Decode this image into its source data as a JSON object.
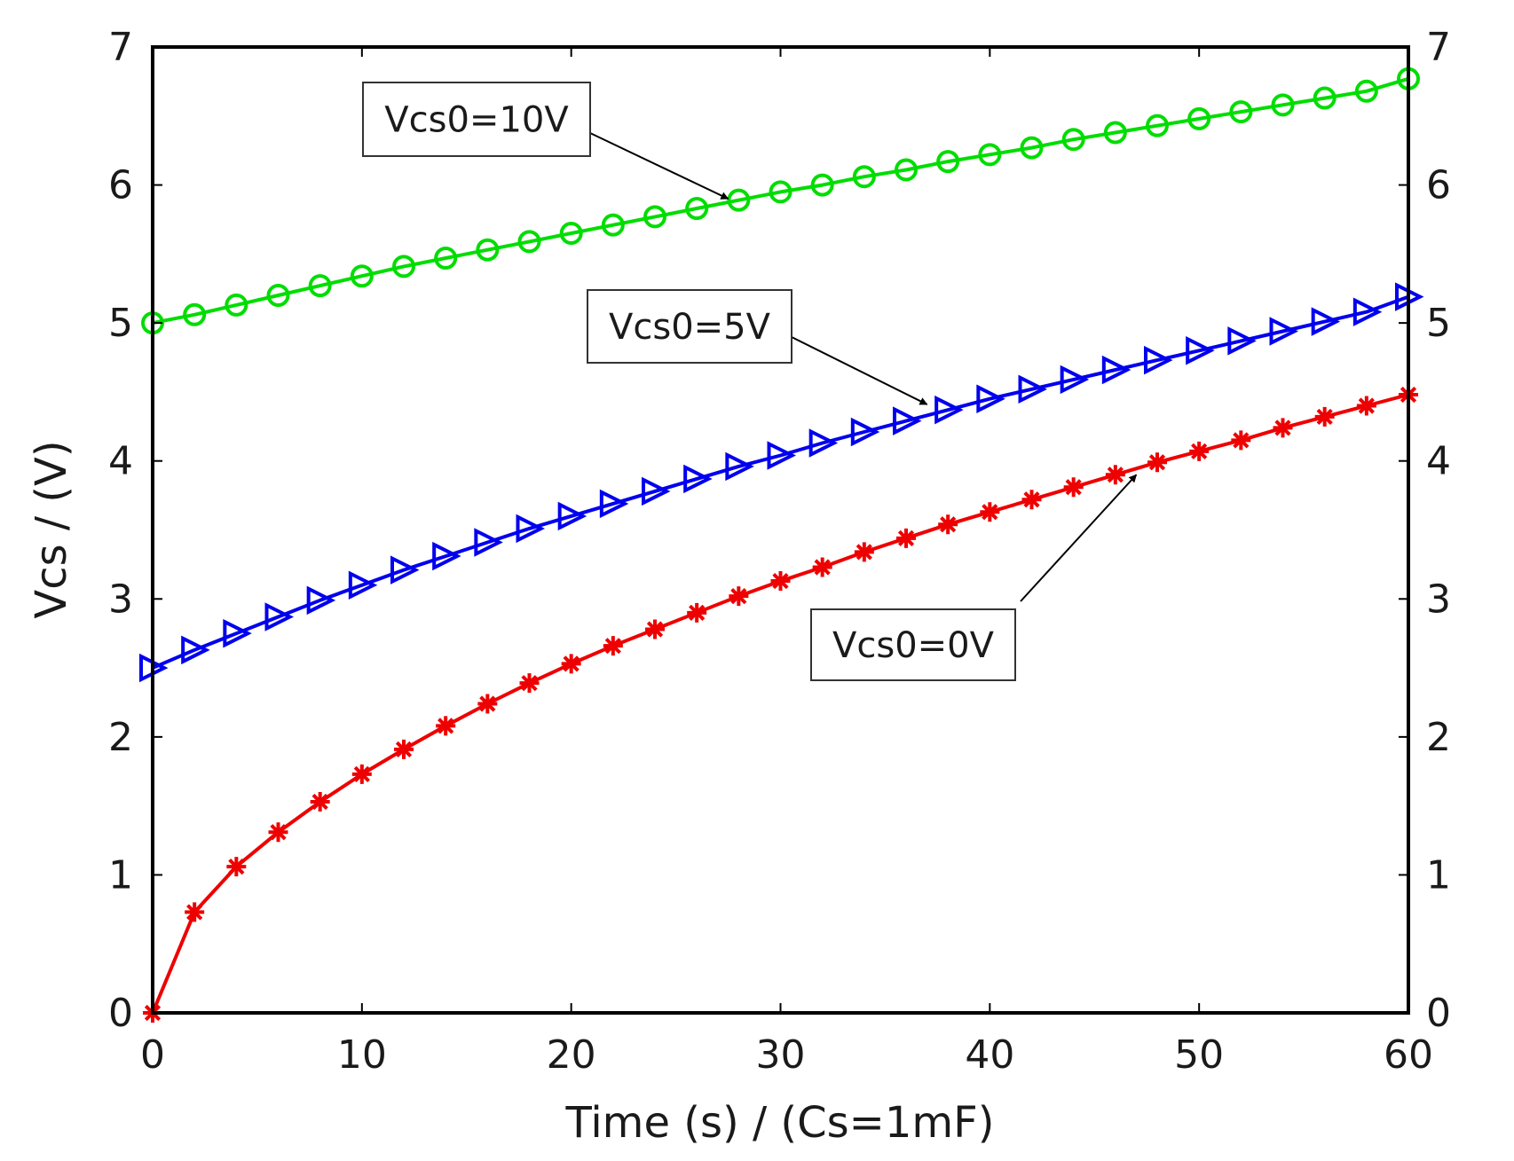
{
  "chart_data": {
    "type": "line",
    "title": "",
    "xlabel": "Time (s) / (Cs=1mF)",
    "ylabel": "Vcs / (V)",
    "xlim": [
      0,
      60
    ],
    "ylim": [
      0,
      7
    ],
    "xticks": [
      0,
      10,
      20,
      30,
      40,
      50,
      60
    ],
    "yticks": [
      0,
      1,
      2,
      3,
      4,
      5,
      6,
      7
    ],
    "x_tick_labels": [
      "0",
      "10",
      "20",
      "30",
      "40",
      "50",
      "60"
    ],
    "y_tick_labels": [
      "0",
      "1",
      "2",
      "3",
      "4",
      "5",
      "6",
      "7"
    ],
    "y_tick_labels_right": [
      "0",
      "1",
      "2",
      "3",
      "4",
      "5",
      "6",
      "7"
    ],
    "grid": false,
    "series": [
      {
        "name": "Vcs0=10V",
        "color": "#00dd00",
        "marker": "circle",
        "x": [
          0,
          2,
          4,
          6,
          8,
          10,
          12,
          14,
          16,
          18,
          20,
          22,
          24,
          26,
          28,
          30,
          32,
          34,
          36,
          38,
          40,
          42,
          44,
          46,
          48,
          50,
          52,
          54,
          56,
          58,
          60
        ],
        "values": [
          5.0,
          5.06,
          5.13,
          5.2,
          5.27,
          5.34,
          5.41,
          5.47,
          5.53,
          5.59,
          5.65,
          5.71,
          5.77,
          5.83,
          5.89,
          5.95,
          6.0,
          6.06,
          6.11,
          6.17,
          6.22,
          6.27,
          6.33,
          6.38,
          6.43,
          6.48,
          6.53,
          6.58,
          6.63,
          6.68,
          6.77
        ]
      },
      {
        "name": "Vcs0=5V",
        "color": "#0000ee",
        "marker": "triangle-right",
        "x": [
          0,
          2,
          4,
          6,
          8,
          10,
          12,
          14,
          16,
          18,
          20,
          22,
          24,
          26,
          28,
          30,
          32,
          34,
          36,
          38,
          40,
          42,
          44,
          46,
          48,
          50,
          52,
          54,
          56,
          58,
          60
        ],
        "values": [
          2.5,
          2.63,
          2.75,
          2.87,
          2.99,
          3.1,
          3.21,
          3.31,
          3.41,
          3.51,
          3.6,
          3.69,
          3.78,
          3.87,
          3.96,
          4.04,
          4.13,
          4.21,
          4.29,
          4.37,
          4.45,
          4.52,
          4.59,
          4.66,
          4.73,
          4.8,
          4.87,
          4.94,
          5.01,
          5.08,
          5.19
        ]
      },
      {
        "name": "Vcs0=0V",
        "color": "#ee0000",
        "marker": "asterisk",
        "x": [
          0,
          2,
          4,
          6,
          8,
          10,
          12,
          14,
          16,
          18,
          20,
          22,
          24,
          26,
          28,
          30,
          32,
          34,
          36,
          38,
          40,
          42,
          44,
          46,
          48,
          50,
          52,
          54,
          56,
          58,
          60
        ],
        "values": [
          0.0,
          0.73,
          1.06,
          1.31,
          1.53,
          1.73,
          1.91,
          2.08,
          2.24,
          2.39,
          2.53,
          2.66,
          2.78,
          2.9,
          3.02,
          3.13,
          3.23,
          3.34,
          3.44,
          3.54,
          3.63,
          3.72,
          3.81,
          3.9,
          3.99,
          4.07,
          4.15,
          4.24,
          4.32,
          4.4,
          4.48
        ]
      }
    ],
    "annotations": [
      {
        "text": "Vcs0=10V",
        "series": "Vcs0=10V",
        "target": [
          27.5,
          5.9
        ]
      },
      {
        "text": "Vcs0=5V",
        "series": "Vcs0=5V",
        "target": [
          37.0,
          4.41
        ]
      },
      {
        "text": "Vcs0=0V",
        "series": "Vcs0=0V",
        "target": [
          47.0,
          3.9
        ]
      }
    ]
  }
}
